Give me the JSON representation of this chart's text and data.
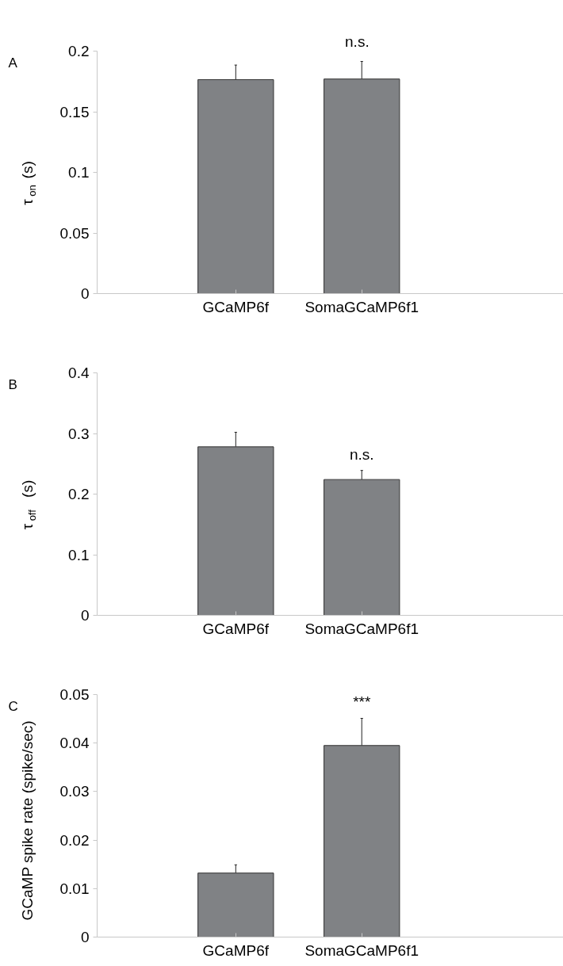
{
  "chart_data": [
    {
      "type": "bar",
      "title": "A",
      "ylabel": "τ$_{on}$ (s)",
      "categories": [
        "GCaMP6f",
        "SomaGCaMP6f1"
      ],
      "series": [
        {
          "color": "#808285",
          "values": [
            0.1765,
            0.177
          ],
          "errors": [
            0.012,
            0.0145
          ]
        }
      ],
      "ylim": [
        0,
        0.2
      ],
      "yticks": [
        0,
        0.05,
        0.1,
        0.15,
        0.2
      ],
      "grid": false,
      "annotations": [
        "n.s."
      ]
    },
    {
      "type": "bar",
      "title": "B",
      "ylabel": "τ$_{off}$ (s)",
      "categories": [
        "GCaMP6f",
        "SomaGCaMP6f1"
      ],
      "series": [
        {
          "color": "#808285",
          "values": [
            0.278,
            0.224
          ],
          "errors": [
            0.024,
            0.015
          ]
        }
      ],
      "ylim": [
        0,
        0.4
      ],
      "yticks": [
        0,
        0.1,
        0.2,
        0.3,
        0.4
      ],
      "grid": false,
      "annotations": [
        "n.s."
      ]
    },
    {
      "type": "bar",
      "title": "C",
      "ylabel": "GCaMP spike rate (spike/sec)",
      "categories": [
        "GCaMP6f",
        "SomaGCaMP6f1"
      ],
      "series": [
        {
          "color": "#808285",
          "values": [
            0.0132,
            0.0395
          ],
          "errors": [
            0.0017,
            0.0056
          ]
        }
      ],
      "ylim": [
        0,
        0.05
      ],
      "yticks": [
        0,
        0.01,
        0.02,
        0.03,
        0.04,
        0.05
      ],
      "grid": false,
      "annotations": [
        "***"
      ]
    }
  ]
}
